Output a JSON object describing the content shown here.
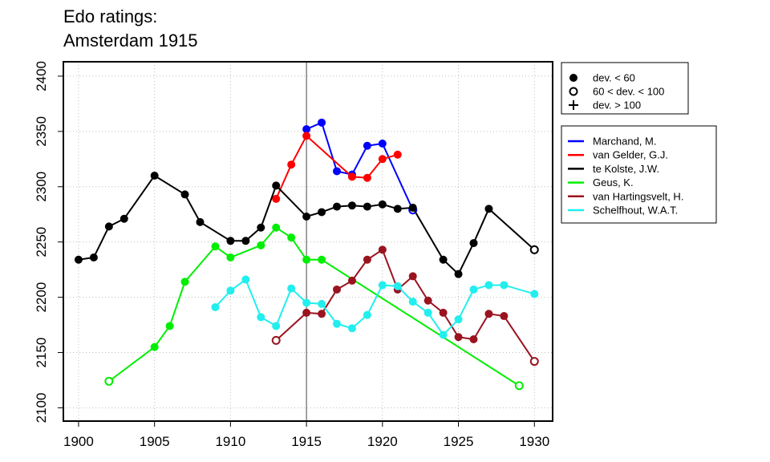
{
  "chart_data": {
    "type": "line",
    "title": [
      "Edo ratings:",
      "Amsterdam 1915"
    ],
    "xlabel": "",
    "ylabel": "",
    "xlim": [
      1899,
      1931.2
    ],
    "ylim": [
      2088,
      2413
    ],
    "x_ticks": [
      1900,
      1905,
      1910,
      1915,
      1920,
      1925,
      1930
    ],
    "y_ticks": [
      2100,
      2150,
      2200,
      2250,
      2300,
      2350,
      2400
    ],
    "vline": 1915,
    "grid": true,
    "marker_legend": [
      {
        "marker": "filled-circle",
        "label": "dev. < 60"
      },
      {
        "marker": "open-circle",
        "label": "60 < dev. < 100"
      },
      {
        "marker": "plus",
        "label": "dev. > 100"
      }
    ],
    "series": [
      {
        "name": "Marchand, M.",
        "color": "#0000ff",
        "points": [
          [
            1915,
            2352,
            "f"
          ],
          [
            1916,
            2358,
            "f"
          ],
          [
            1917,
            2314,
            "f"
          ],
          [
            1918,
            2311,
            "f"
          ],
          [
            1919,
            2337,
            "f"
          ],
          [
            1920,
            2339,
            "f"
          ],
          [
            1922,
            2279,
            "o"
          ]
        ]
      },
      {
        "name": "van Gelder, G.J.",
        "color": "#ff0000",
        "points": [
          [
            1913,
            2289,
            "f"
          ],
          [
            1914,
            2320,
            "f"
          ],
          [
            1915,
            2346,
            "f"
          ],
          [
            1918,
            2309,
            "f"
          ],
          [
            1919,
            2308,
            "f"
          ],
          [
            1920,
            2325,
            "f"
          ],
          [
            1921,
            2329,
            "f"
          ]
        ]
      },
      {
        "name": "te Kolste, J.W.",
        "color": "#000000",
        "points": [
          [
            1900,
            2234,
            "f"
          ],
          [
            1901,
            2236,
            "f"
          ],
          [
            1902,
            2264,
            "f"
          ],
          [
            1903,
            2271,
            "f"
          ],
          [
            1905,
            2310,
            "f"
          ],
          [
            1907,
            2293,
            "f"
          ],
          [
            1908,
            2268,
            "f"
          ],
          [
            1910,
            2251,
            "f"
          ],
          [
            1911,
            2251,
            "f"
          ],
          [
            1912,
            2263,
            "f"
          ],
          [
            1913,
            2301,
            "f"
          ],
          [
            1915,
            2273,
            "f"
          ],
          [
            1916,
            2277,
            "f"
          ],
          [
            1917,
            2282,
            "f"
          ],
          [
            1918,
            2283,
            "f"
          ],
          [
            1919,
            2282,
            "f"
          ],
          [
            1920,
            2284,
            "f"
          ],
          [
            1921,
            2280,
            "f"
          ],
          [
            1922,
            2281,
            "f"
          ],
          [
            1924,
            2234,
            "f"
          ],
          [
            1925,
            2221,
            "f"
          ],
          [
            1926,
            2249,
            "f"
          ],
          [
            1927,
            2280,
            "f"
          ],
          [
            1930,
            2243,
            "o"
          ]
        ]
      },
      {
        "name": "Geus, K.",
        "color": "#00ee00",
        "points": [
          [
            1902,
            2124,
            "o"
          ],
          [
            1905,
            2155,
            "f"
          ],
          [
            1906,
            2174,
            "f"
          ],
          [
            1907,
            2214,
            "f"
          ],
          [
            1909,
            2246,
            "f"
          ],
          [
            1910,
            2236,
            "f"
          ],
          [
            1912,
            2247,
            "f"
          ],
          [
            1913,
            2263,
            "f"
          ],
          [
            1914,
            2254,
            "f"
          ],
          [
            1915,
            2234,
            "f"
          ],
          [
            1916,
            2234,
            "f"
          ],
          [
            1929,
            2120,
            "o"
          ]
        ]
      },
      {
        "name": "van Hartingsvelt, H.",
        "color": "#99141f",
        "points": [
          [
            1913,
            2161,
            "o"
          ],
          [
            1915,
            2186,
            "f"
          ],
          [
            1916,
            2185,
            "f"
          ],
          [
            1917,
            2207,
            "f"
          ],
          [
            1918,
            2215,
            "f"
          ],
          [
            1919,
            2234,
            "f"
          ],
          [
            1920,
            2243,
            "f"
          ],
          [
            1921,
            2207,
            "f"
          ],
          [
            1922,
            2219,
            "f"
          ],
          [
            1923,
            2197,
            "f"
          ],
          [
            1924,
            2186,
            "f"
          ],
          [
            1925,
            2164,
            "f"
          ],
          [
            1926,
            2162,
            "f"
          ],
          [
            1927,
            2185,
            "f"
          ],
          [
            1928,
            2183,
            "f"
          ],
          [
            1930,
            2142,
            "o"
          ]
        ]
      },
      {
        "name": "Schelfhout, W.A.T.",
        "color": "#22eeee",
        "points": [
          [
            1909,
            2191,
            "f"
          ],
          [
            1910,
            2206,
            "f"
          ],
          [
            1911,
            2216,
            "f"
          ],
          [
            1912,
            2182,
            "f"
          ],
          [
            1913,
            2174,
            "f"
          ],
          [
            1914,
            2208,
            "f"
          ],
          [
            1915,
            2195,
            "f"
          ],
          [
            1916,
            2194,
            "f"
          ],
          [
            1917,
            2176,
            "f"
          ],
          [
            1918,
            2172,
            "f"
          ],
          [
            1919,
            2184,
            "f"
          ],
          [
            1920,
            2211,
            "f"
          ],
          [
            1921,
            2210,
            "f"
          ],
          [
            1922,
            2196,
            "f"
          ],
          [
            1923,
            2186,
            "f"
          ],
          [
            1924,
            2166,
            "f"
          ],
          [
            1925,
            2180,
            "f"
          ],
          [
            1926,
            2207,
            "f"
          ],
          [
            1927,
            2211,
            "f"
          ],
          [
            1928,
            2211,
            "f"
          ],
          [
            1930,
            2203,
            "f"
          ]
        ]
      }
    ]
  }
}
